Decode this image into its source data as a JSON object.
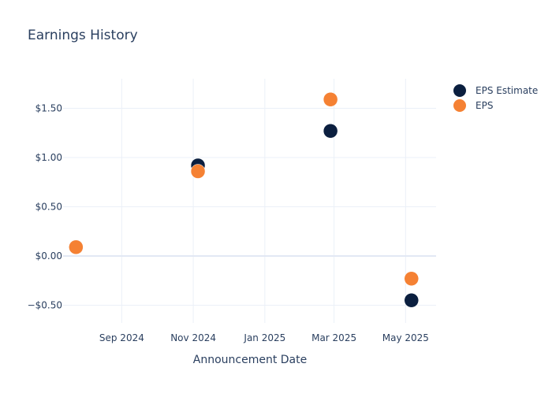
{
  "chart_data": {
    "type": "scatter",
    "title": "Earnings History",
    "xlabel": "Announcement Date",
    "ylabel": "",
    "x_tick_labels": [
      "Sep 2024",
      "Nov 2024",
      "Jan 2025",
      "Mar 2025",
      "May 2025"
    ],
    "x_tick_dates": [
      "2024-09-01",
      "2024-11-01",
      "2025-01-01",
      "2025-03-01",
      "2025-05-01"
    ],
    "xlim": [
      "2024-07-13",
      "2025-05-27"
    ],
    "y_ticks": [
      -0.5,
      0,
      0.5,
      1.0,
      1.5
    ],
    "y_tick_labels": [
      "−$0.50",
      "$0.00",
      "$0.50",
      "$1.00",
      "$1.50"
    ],
    "ylim": [
      -0.68,
      1.8
    ],
    "grid": true,
    "legend_position": "top-right",
    "series": [
      {
        "name": "EPS Estimate",
        "color": "#0b1f3f",
        "points": [
          {
            "x": "2024-07-24",
            "y": 0.09
          },
          {
            "x": "2024-11-05",
            "y": 0.92
          },
          {
            "x": "2025-02-26",
            "y": 1.27
          },
          {
            "x": "2025-05-06",
            "y": -0.45
          }
        ]
      },
      {
        "name": "EPS",
        "color": "#f58133",
        "points": [
          {
            "x": "2024-07-24",
            "y": 0.09
          },
          {
            "x": "2024-11-05",
            "y": 0.86
          },
          {
            "x": "2025-02-26",
            "y": 1.59
          },
          {
            "x": "2025-05-06",
            "y": -0.23
          }
        ]
      }
    ]
  }
}
